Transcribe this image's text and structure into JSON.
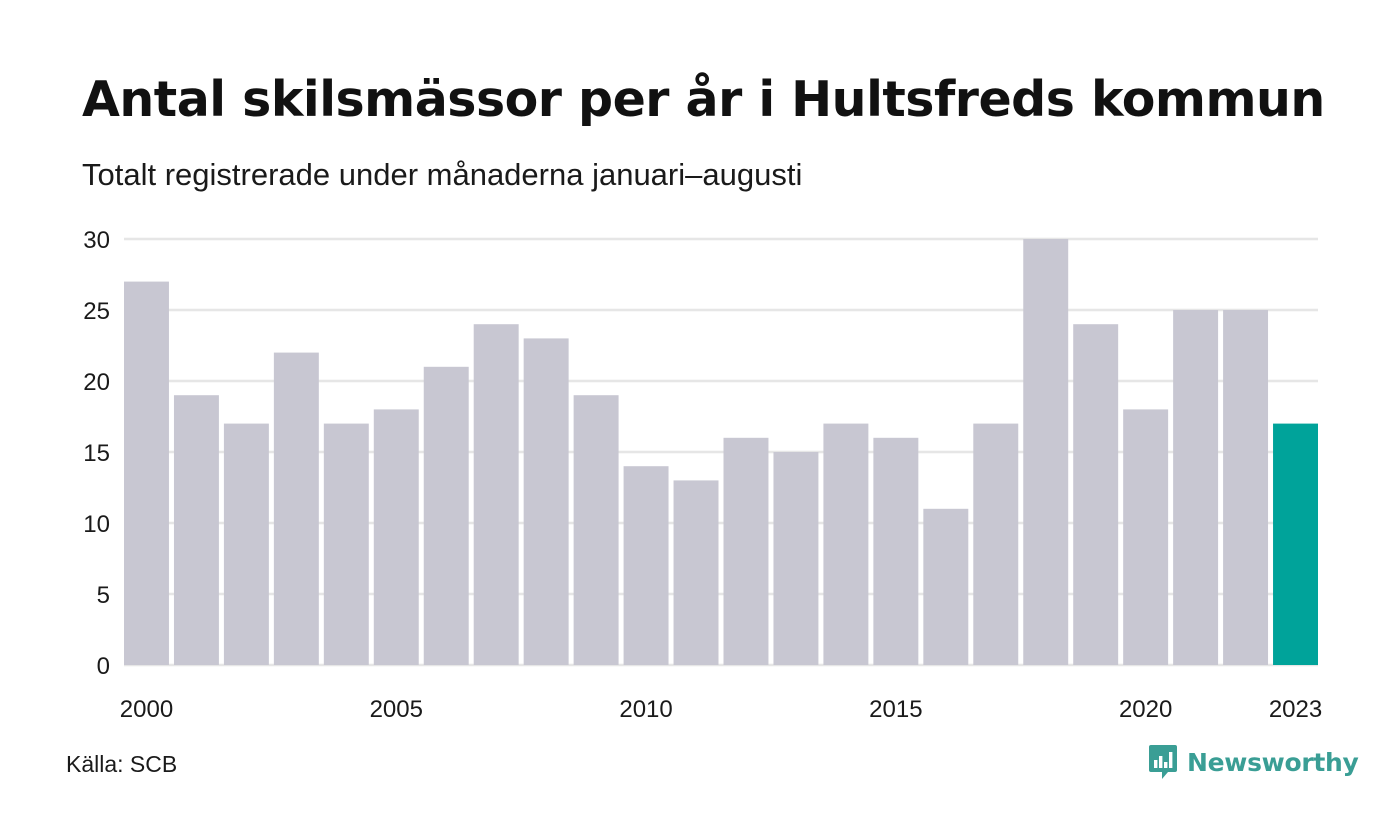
{
  "header": {
    "title": "Antal skilsmässor per år i Hultsfreds kommun",
    "subtitle": "Totalt registrerade under månaderna januari–augusti"
  },
  "footer": {
    "source": "Källa: SCB",
    "brand": "Newsworthy",
    "brand_icon": "bar-chart-speech-bubble-icon"
  },
  "colors": {
    "bar": "#c8c7d2",
    "highlight": "#00a39a",
    "grid": "#e6e6e6",
    "brand": "#3a9e95"
  },
  "chart_data": {
    "type": "bar",
    "categories": [
      "2000",
      "2001",
      "2002",
      "2003",
      "2004",
      "2005",
      "2006",
      "2007",
      "2008",
      "2009",
      "2010",
      "2011",
      "2012",
      "2013",
      "2014",
      "2015",
      "2016",
      "2017",
      "2018",
      "2019",
      "2020",
      "2021",
      "2022",
      "2023"
    ],
    "values": [
      27,
      19,
      17,
      22,
      17,
      18,
      21,
      24,
      23,
      19,
      14,
      13,
      16,
      15,
      17,
      16,
      11,
      17,
      30,
      24,
      18,
      25,
      25,
      17
    ],
    "highlight_category": "2023",
    "x_tick_labels": [
      "2000",
      "2005",
      "2010",
      "2015",
      "2020",
      "2023"
    ],
    "y_ticks": [
      0,
      5,
      10,
      15,
      20,
      25,
      30
    ],
    "ylim": [
      0,
      30
    ],
    "grid": true,
    "legend": "none",
    "xlabel": "",
    "ylabel": ""
  }
}
